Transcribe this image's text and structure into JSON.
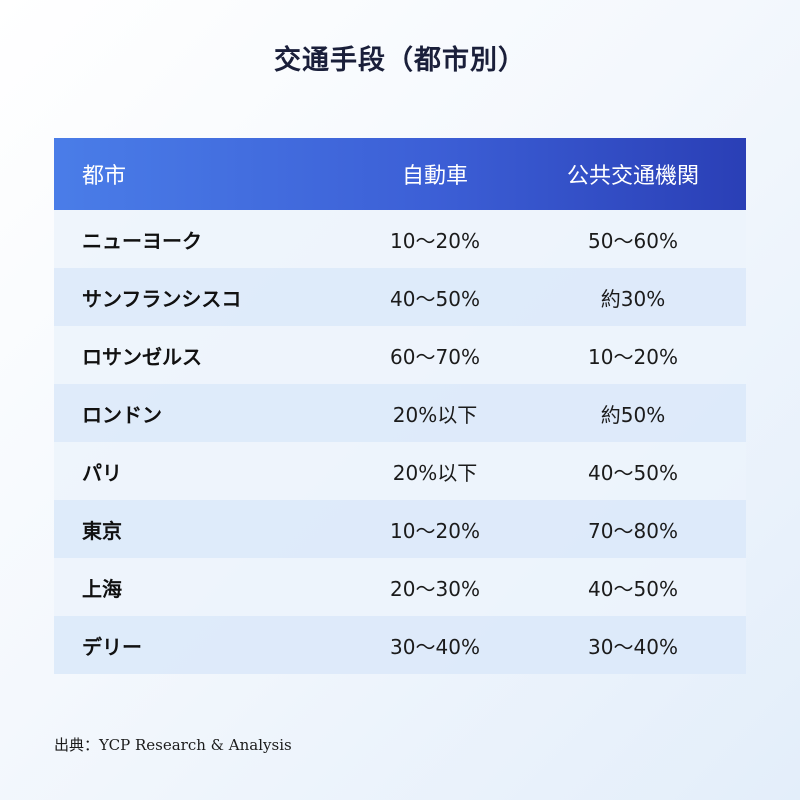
{
  "title": "交通手段（都市別）",
  "table": {
    "headers": [
      "都市",
      "自動車",
      "公共交通機関"
    ],
    "rows": [
      [
        "ニューヨーク",
        "10〜20%",
        "50〜60%"
      ],
      [
        "サンフランシスコ",
        "40〜50%",
        "約30%"
      ],
      [
        "ロサンゼルス",
        "60〜70%",
        "10〜20%"
      ],
      [
        "ロンドン",
        "20%以下",
        "約50%"
      ],
      [
        "パリ",
        "20%以下",
        "40〜50%"
      ],
      [
        "東京",
        "10〜20%",
        "70〜80%"
      ],
      [
        "上海",
        "20〜30%",
        "40〜50%"
      ],
      [
        "デリー",
        "30〜40%",
        "30〜40%"
      ]
    ]
  },
  "source": "出典：YCP Research & Analysis",
  "colors": {
    "header_gradient_start": "#4a7de8",
    "header_gradient_end": "#2a3fb6",
    "row_light": "#ecf3fc",
    "row_dark": "#dce9fa"
  }
}
